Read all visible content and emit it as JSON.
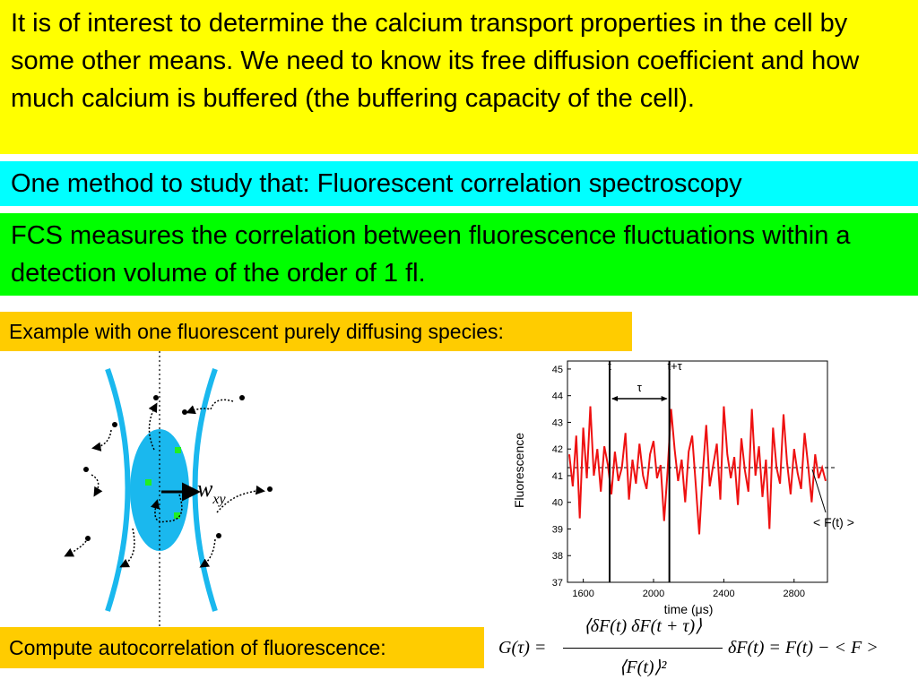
{
  "blocks": [
    "It is of interest to determine the calcium transport properties in the cell by some other means. We need to know its free diffusion coefficient and how much calcium is buffered (the buffering capacity of the cell).",
    "One method to study that: Fluorescent correlation spectroscopy",
    "FCS measures the correlation between fluorescence fluctuations within a detection volume of the order of 1 fl.",
    "Example with one fluorescent purely diffusing species:",
    "Compute autocorrelation of fluorescence:"
  ],
  "diagram": {
    "label_main": "w",
    "label_sub": "xy"
  },
  "formula": {
    "lhs": "G(τ) =",
    "numerator": "⟨δF(t) δF(t + τ)⟩",
    "denominator": "⟨F(t)⟩²",
    "definition": "δF(t) = F(t) − < F >"
  },
  "chart_data": {
    "type": "line",
    "y_label": "Fluorescence",
    "x_label": "time (μs)",
    "color": "#ee1111",
    "x": [
      1520,
      1540,
      1560,
      1580,
      1600,
      1620,
      1640,
      1660,
      1680,
      1700,
      1720,
      1740,
      1760,
      1780,
      1800,
      1820,
      1840,
      1860,
      1880,
      1900,
      1920,
      1940,
      1960,
      1980,
      2000,
      2020,
      2040,
      2060,
      2080,
      2100,
      2120,
      2140,
      2160,
      2180,
      2200,
      2220,
      2240,
      2260,
      2280,
      2300,
      2320,
      2340,
      2360,
      2380,
      2400,
      2420,
      2440,
      2460,
      2480,
      2500,
      2520,
      2540,
      2560,
      2580,
      2600,
      2620,
      2640,
      2660,
      2680,
      2700,
      2720,
      2740,
      2760,
      2780,
      2800,
      2820,
      2840,
      2860,
      2880,
      2900,
      2920,
      2940,
      2960,
      2980
    ],
    "values": [
      41.8,
      40.6,
      42.5,
      39.4,
      42.8,
      40.9,
      43.6,
      41.0,
      42.0,
      40.4,
      42.1,
      41.4,
      40.3,
      41.9,
      40.8,
      41.3,
      42.6,
      40.1,
      41.6,
      40.7,
      42.2,
      41.0,
      40.5,
      41.8,
      42.3,
      40.9,
      41.4,
      39.3,
      41.2,
      43.5,
      42.0,
      40.8,
      41.6,
      40.0,
      41.9,
      42.5,
      40.7,
      38.8,
      41.1,
      42.9,
      40.6,
      41.4,
      42.2,
      40.1,
      43.6,
      41.8,
      40.9,
      41.7,
      39.9,
      42.4,
      41.2,
      40.4,
      43.5,
      41.0,
      42.1,
      40.2,
      41.6,
      39.0,
      42.8,
      41.3,
      40.7,
      43.3,
      41.5,
      40.3,
      42.0,
      41.1,
      40.5,
      42.6,
      41.4,
      40.0,
      41.8,
      40.9,
      41.3,
      40.8
    ],
    "xlim": [
      1510,
      2990
    ],
    "ylim": [
      37,
      45.3
    ],
    "xticks": [
      1600,
      2000,
      2400,
      2800
    ],
    "yticks": [
      37,
      38,
      39,
      40,
      41,
      42,
      43,
      44,
      45
    ],
    "markers": [
      {
        "label": "t",
        "x": 1750
      },
      {
        "label": "t+τ",
        "x": 2090
      }
    ],
    "interval_label": "τ",
    "mean": {
      "label": "< F(t) >",
      "value": 41.3
    }
  }
}
